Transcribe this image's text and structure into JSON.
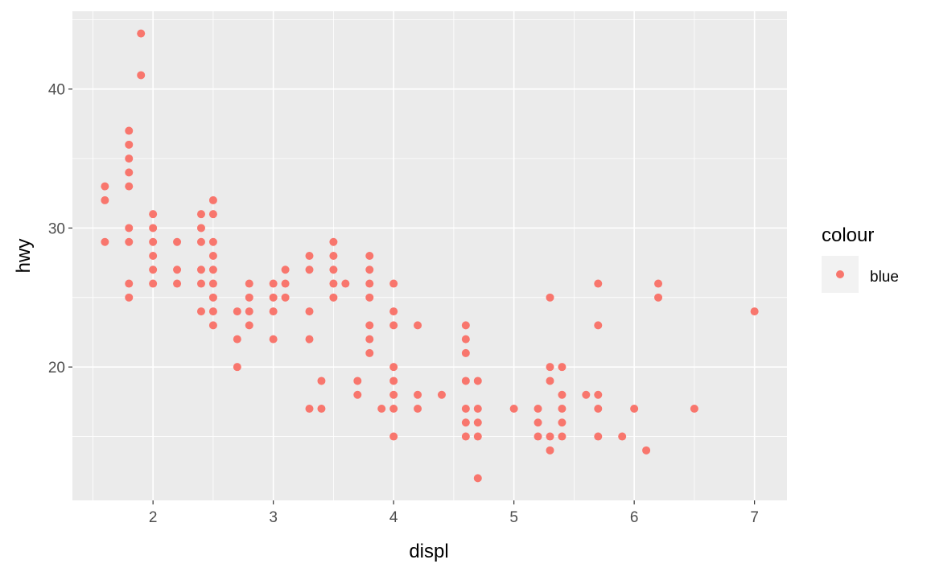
{
  "chart_data": {
    "type": "scatter",
    "xlabel": "displ",
    "ylabel": "hwy",
    "xlim": [
      1.33,
      7.27
    ],
    "ylim": [
      10.4,
      45.6
    ],
    "x_ticks": [
      2,
      3,
      4,
      5,
      6,
      7
    ],
    "y_ticks": [
      20,
      30,
      40
    ],
    "x_tick_labels": [
      "2",
      "3",
      "4",
      "5",
      "6",
      "7"
    ],
    "y_tick_labels": [
      "20",
      "30",
      "40"
    ],
    "grid": true,
    "legend": {
      "title": "colour",
      "placement": "right",
      "entries": [
        {
          "label": "blue",
          "color": "#F8766D"
        }
      ]
    },
    "colors": {
      "point": "#F8766D",
      "panel": "#EBEBEB",
      "grid": "#FFFFFF"
    },
    "series": [
      {
        "name": "blue",
        "points": [
          [
            1.6,
            33
          ],
          [
            1.6,
            32
          ],
          [
            1.6,
            29
          ],
          [
            1.8,
            37
          ],
          [
            1.8,
            36
          ],
          [
            1.8,
            35
          ],
          [
            1.8,
            34
          ],
          [
            1.8,
            33
          ],
          [
            1.8,
            30
          ],
          [
            1.8,
            29
          ],
          [
            1.8,
            26
          ],
          [
            1.8,
            25
          ],
          [
            1.9,
            44
          ],
          [
            1.9,
            41
          ],
          [
            2.0,
            31
          ],
          [
            2.0,
            30
          ],
          [
            2.0,
            29
          ],
          [
            2.0,
            28
          ],
          [
            2.0,
            27
          ],
          [
            2.0,
            26
          ],
          [
            2.2,
            29
          ],
          [
            2.2,
            27
          ],
          [
            2.2,
            26
          ],
          [
            2.4,
            31
          ],
          [
            2.4,
            30
          ],
          [
            2.4,
            29
          ],
          [
            2.4,
            27
          ],
          [
            2.4,
            26
          ],
          [
            2.4,
            24
          ],
          [
            2.5,
            32
          ],
          [
            2.5,
            31
          ],
          [
            2.5,
            29
          ],
          [
            2.5,
            28
          ],
          [
            2.5,
            27
          ],
          [
            2.5,
            26
          ],
          [
            2.5,
            25
          ],
          [
            2.5,
            24
          ],
          [
            2.5,
            23
          ],
          [
            2.7,
            24
          ],
          [
            2.7,
            22
          ],
          [
            2.7,
            20
          ],
          [
            2.8,
            26
          ],
          [
            2.8,
            25
          ],
          [
            2.8,
            24
          ],
          [
            2.8,
            23
          ],
          [
            3.0,
            26
          ],
          [
            3.0,
            25
          ],
          [
            3.0,
            24
          ],
          [
            3.0,
            22
          ],
          [
            3.1,
            27
          ],
          [
            3.1,
            26
          ],
          [
            3.1,
            25
          ],
          [
            3.3,
            28
          ],
          [
            3.3,
            27
          ],
          [
            3.3,
            24
          ],
          [
            3.3,
            22
          ],
          [
            3.3,
            17
          ],
          [
            3.4,
            19
          ],
          [
            3.4,
            17
          ],
          [
            3.5,
            29
          ],
          [
            3.5,
            28
          ],
          [
            3.5,
            27
          ],
          [
            3.5,
            26
          ],
          [
            3.5,
            25
          ],
          [
            3.6,
            26
          ],
          [
            3.7,
            19
          ],
          [
            3.7,
            18
          ],
          [
            3.8,
            28
          ],
          [
            3.8,
            27
          ],
          [
            3.8,
            26
          ],
          [
            3.8,
            25
          ],
          [
            3.8,
            23
          ],
          [
            3.8,
            22
          ],
          [
            3.8,
            21
          ],
          [
            3.9,
            17
          ],
          [
            4.0,
            26
          ],
          [
            4.0,
            24
          ],
          [
            4.0,
            23
          ],
          [
            4.0,
            20
          ],
          [
            4.0,
            19
          ],
          [
            4.0,
            18
          ],
          [
            4.0,
            17
          ],
          [
            4.0,
            15
          ],
          [
            4.2,
            23
          ],
          [
            4.2,
            18
          ],
          [
            4.2,
            17
          ],
          [
            4.4,
            18
          ],
          [
            4.6,
            23
          ],
          [
            4.6,
            22
          ],
          [
            4.6,
            21
          ],
          [
            4.6,
            19
          ],
          [
            4.6,
            17
          ],
          [
            4.6,
            16
          ],
          [
            4.6,
            15
          ],
          [
            4.7,
            19
          ],
          [
            4.7,
            17
          ],
          [
            4.7,
            16
          ],
          [
            4.7,
            15
          ],
          [
            4.7,
            12
          ],
          [
            5.0,
            17
          ],
          [
            5.2,
            17
          ],
          [
            5.2,
            16
          ],
          [
            5.2,
            15
          ],
          [
            5.3,
            25
          ],
          [
            5.3,
            20
          ],
          [
            5.3,
            19
          ],
          [
            5.3,
            15
          ],
          [
            5.3,
            14
          ],
          [
            5.4,
            20
          ],
          [
            5.4,
            18
          ],
          [
            5.4,
            17
          ],
          [
            5.4,
            16
          ],
          [
            5.4,
            15
          ],
          [
            5.6,
            18
          ],
          [
            5.7,
            26
          ],
          [
            5.7,
            23
          ],
          [
            5.7,
            18
          ],
          [
            5.7,
            17
          ],
          [
            5.7,
            15
          ],
          [
            5.9,
            15
          ],
          [
            6.0,
            17
          ],
          [
            6.1,
            14
          ],
          [
            6.2,
            26
          ],
          [
            6.2,
            25
          ],
          [
            6.5,
            17
          ],
          [
            7.0,
            24
          ]
        ]
      }
    ]
  }
}
